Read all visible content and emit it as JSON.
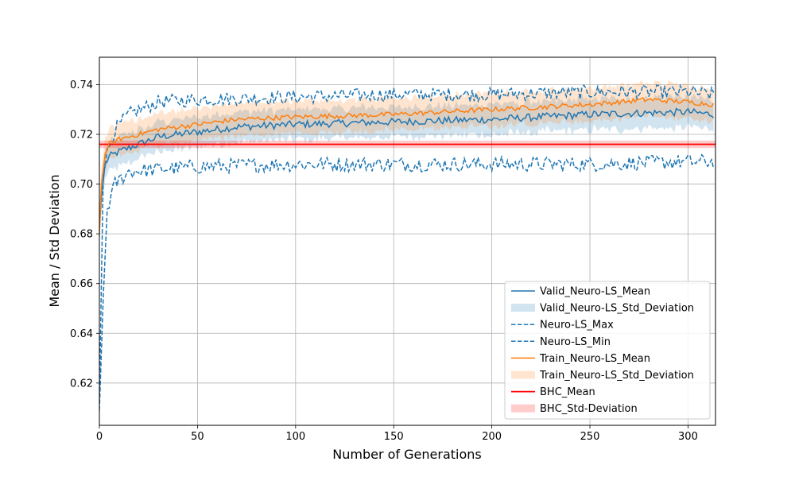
{
  "chart_data": {
    "type": "line",
    "title": "",
    "xlabel": "Number of Generations",
    "ylabel": "Mean / Std Deviation",
    "xlim": [
      0,
      314
    ],
    "ylim": [
      0.603,
      0.751
    ],
    "xticks": [
      0,
      50,
      100,
      150,
      200,
      250,
      300
    ],
    "yticks": [
      0.62,
      0.64,
      0.66,
      0.68,
      0.7,
      0.72,
      0.74
    ],
    "xtick_labels": [
      "0",
      "50",
      "100",
      "150",
      "200",
      "250",
      "300"
    ],
    "ytick_labels": [
      "0.62",
      "0.64",
      "0.66",
      "0.68",
      "0.70",
      "0.72",
      "0.74"
    ],
    "grid": true,
    "legend_position": "lower-right",
    "n_generations": 314,
    "series": [
      {
        "name": "Valid_Neuro-LS_Mean",
        "kind": "line",
        "color": "#1f77b4",
        "anchors_x": [
          0,
          1,
          3,
          5,
          10,
          20,
          30,
          50,
          70,
          100,
          150,
          200,
          250,
          300,
          313
        ],
        "anchors_y": [
          0.682,
          0.695,
          0.708,
          0.711,
          0.713,
          0.716,
          0.719,
          0.721,
          0.723,
          0.724,
          0.725,
          0.726,
          0.728,
          0.729,
          0.728
        ],
        "noise": 0.0015
      },
      {
        "name": "Valid_Neuro-LS_Std_Deviation",
        "kind": "band",
        "color": "#1f77b4",
        "of": "Valid_Neuro-LS_Mean",
        "half_width": 0.006
      },
      {
        "name": "Neuro-LS_Max",
        "kind": "dashed",
        "color": "#1f77b4",
        "anchors_x": [
          0,
          2,
          4,
          8,
          15,
          30,
          50,
          100,
          150,
          200,
          250,
          300,
          313
        ],
        "anchors_y": [
          0.612,
          0.705,
          0.713,
          0.722,
          0.728,
          0.733,
          0.734,
          0.735,
          0.736,
          0.736,
          0.737,
          0.737,
          0.736
        ],
        "noise": 0.0028
      },
      {
        "name": "Neuro-LS_Min",
        "kind": "dashed",
        "color": "#1f77b4",
        "anchors_x": [
          0,
          2,
          4,
          8,
          15,
          30,
          50,
          100,
          150,
          200,
          250,
          300,
          313
        ],
        "anchors_y": [
          0.609,
          0.655,
          0.69,
          0.7,
          0.705,
          0.706,
          0.707,
          0.708,
          0.708,
          0.708,
          0.708,
          0.709,
          0.709
        ],
        "noise": 0.003
      },
      {
        "name": "Train_Neuro-LS_Mean",
        "kind": "line",
        "color": "#ff7f0e",
        "anchors_x": [
          0,
          1,
          3,
          5,
          10,
          20,
          30,
          50,
          70,
          100,
          150,
          200,
          250,
          280,
          300,
          313
        ],
        "anchors_y": [
          0.68,
          0.7,
          0.712,
          0.716,
          0.718,
          0.72,
          0.722,
          0.724,
          0.726,
          0.727,
          0.728,
          0.73,
          0.732,
          0.734,
          0.733,
          0.732
        ],
        "noise": 0.001
      },
      {
        "name": "Train_Neuro-LS_Std_Deviation",
        "kind": "band",
        "color": "#ff7f0e",
        "of": "Train_Neuro-LS_Mean",
        "half_width": 0.0065
      },
      {
        "name": "BHC_Mean",
        "kind": "hline",
        "color": "#ff0000",
        "value": 0.716
      },
      {
        "name": "BHC_Std-Deviation",
        "kind": "hband",
        "color": "#ff0000",
        "value": 0.716,
        "half_width": 0.0015
      }
    ],
    "legend": [
      "Valid_Neuro-LS_Mean",
      "Valid_Neuro-LS_Std_Deviation",
      "Neuro-LS_Max",
      "Neuro-LS_Min",
      "Train_Neuro-LS_Mean",
      "Train_Neuro-LS_Std_Deviation",
      "BHC_Mean",
      "BHC_Std-Deviation"
    ]
  }
}
